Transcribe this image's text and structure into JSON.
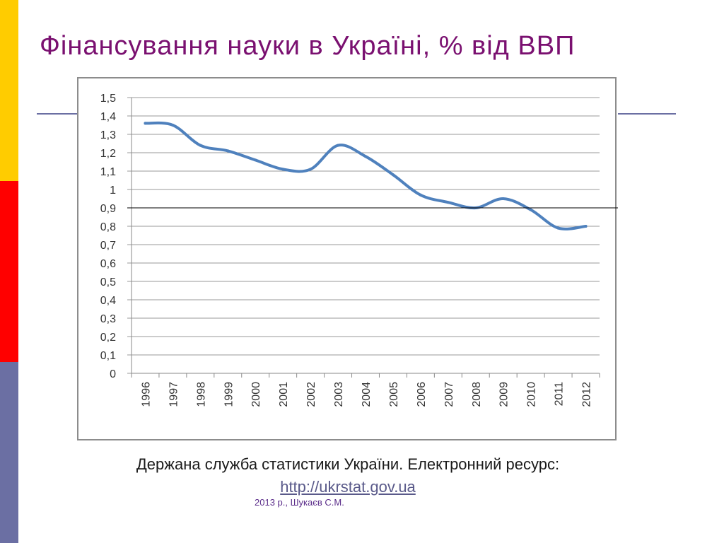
{
  "slide": {
    "title": "Фінансування науки в Україні, % від ВВП",
    "source_text": "Держана служба статистики України. Електронний ресурс:",
    "source_link": "http://ukrstat.gov.ua",
    "author": "2013 р., Шукаєв С.М.",
    "colors": {
      "title": "#7a1070",
      "stripe_top": "#ffcc00",
      "stripe_middle": "#ff0000",
      "stripe_bottom": "#6b6fa3",
      "line": "#4f81bd",
      "reference_line": "#000000"
    }
  },
  "chart_data": {
    "type": "line",
    "title": "",
    "xlabel": "",
    "ylabel": "",
    "x": [
      "1996",
      "1997",
      "1998",
      "1999",
      "2000",
      "2001",
      "2002",
      "2003",
      "2004",
      "2005",
      "2006",
      "2007",
      "2008",
      "2009",
      "2010",
      "2011",
      "2012"
    ],
    "series": [
      {
        "values": [
          1.36,
          1.35,
          1.24,
          1.21,
          1.16,
          1.11,
          1.11,
          1.24,
          1.18,
          1.08,
          0.97,
          0.93,
          0.9,
          0.95,
          0.89,
          0.79,
          0.8
        ]
      }
    ],
    "y_ticks": [
      "0",
      "0,1",
      "0,2",
      "0,3",
      "0,4",
      "0,5",
      "0,6",
      "0,7",
      "0,8",
      "0,9",
      "1",
      "1,1",
      "1,2",
      "1,3",
      "1,4",
      "1,5"
    ],
    "ylim": [
      0,
      1.5
    ],
    "reference_line_y": 0.9,
    "grid": true,
    "legend": "none",
    "line_style": "smooth"
  }
}
